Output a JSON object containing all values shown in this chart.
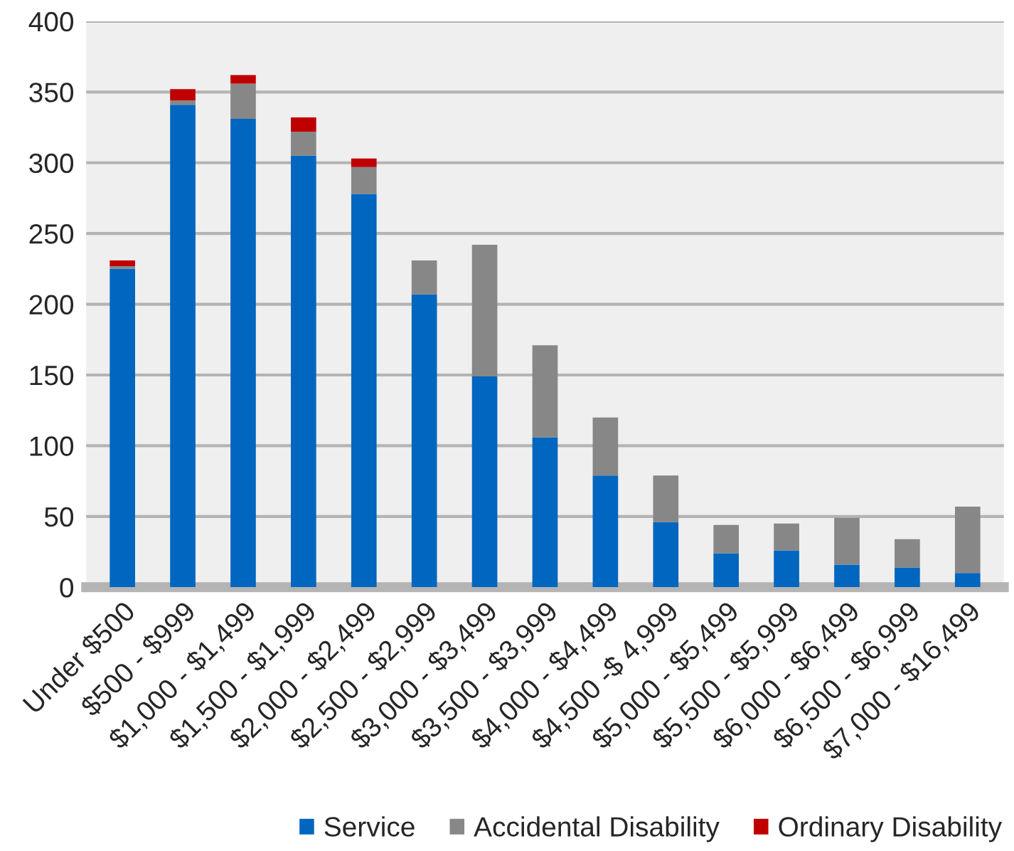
{
  "chart_data": {
    "type": "bar",
    "stacked": true,
    "categories": [
      "Under $500",
      "$500 - $999",
      "$1,000 - $1,499",
      "$1,500 - $1,999",
      "$2,000 - $2,499",
      "$2,500 - $2,999",
      "$3,000 - $3,499",
      "$3,500 - $3,999",
      "$4,000 - $4,499",
      "$4,500 -$ 4,999",
      "$5,000 - $5,499",
      "$5,500 - $5,999",
      "$6,000 - $6,499",
      "$6,500 - $6,999",
      "$7,000 - $16,499"
    ],
    "series": [
      {
        "name": "Service",
        "color": "#0066bf",
        "values": [
          225,
          341,
          331,
          305,
          278,
          207,
          149,
          106,
          79,
          46,
          24,
          26,
          16,
          14,
          10
        ]
      },
      {
        "name": "Accidental Disability",
        "color": "#878787",
        "values": [
          2,
          3,
          25,
          17,
          19,
          24,
          93,
          65,
          41,
          33,
          20,
          19,
          33,
          20,
          47
        ]
      },
      {
        "name": "Ordinary Disability",
        "color": "#c00000",
        "values": [
          4,
          8,
          6,
          10,
          6,
          0,
          0,
          0,
          0,
          0,
          0,
          0,
          0,
          0,
          0
        ]
      }
    ],
    "ylim": [
      0,
      400
    ],
    "yticks": [
      0,
      50,
      100,
      150,
      200,
      250,
      300,
      350,
      400
    ],
    "grid": "y",
    "legend": "bottom"
  }
}
